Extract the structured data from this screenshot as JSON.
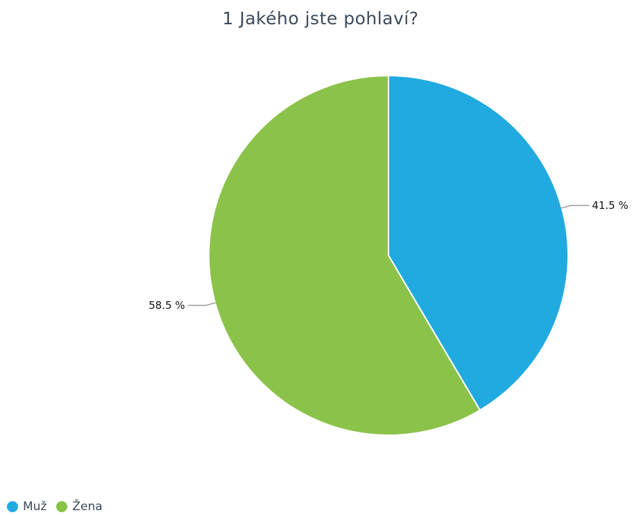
{
  "chart_data": {
    "type": "pie",
    "title": "1 Jakého jste pohlaví?",
    "categories": [
      "Muž",
      "Žena"
    ],
    "values": [
      41.5,
      58.5
    ],
    "data_labels": [
      "41.5 %",
      "58.5 %"
    ],
    "colors": [
      "#21aae0",
      "#8bc34a"
    ],
    "legend_position": "bottom-left",
    "start_angle_deg": 0,
    "direction": "clockwise"
  }
}
